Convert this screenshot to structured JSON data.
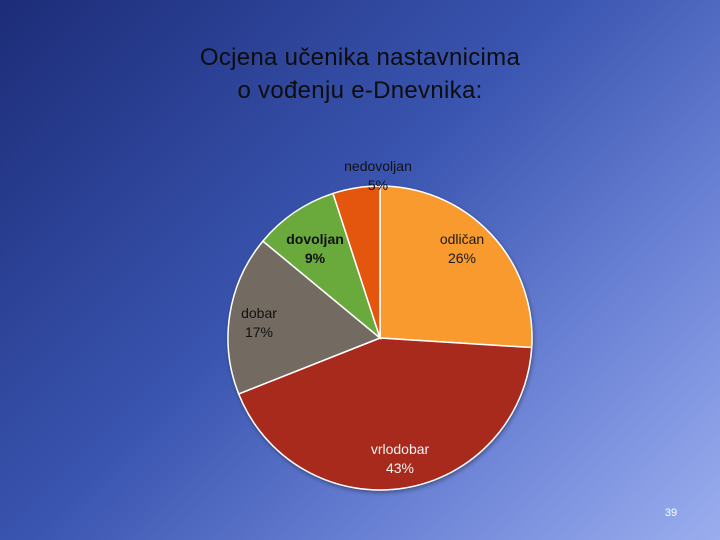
{
  "slide": {
    "title_lines": [
      "Ocjena učenika nastavnicima",
      "o vođenju e-Dnevnika:"
    ],
    "page_number": "39"
  },
  "chart_data": {
    "type": "pie",
    "title": "Ocjena učenika nastavnicima o vođenju e-Dnevnika:",
    "slices": [
      {
        "label": "odličan",
        "percent_label": "26%",
        "value": 26,
        "color": "#f89a2e"
      },
      {
        "label": "vrlodobar",
        "percent_label": "43%",
        "value": 43,
        "color": "#a8291b"
      },
      {
        "label": "dobar",
        "percent_label": "17%",
        "value": 17,
        "color": "#736b62"
      },
      {
        "label": "dovoljan",
        "percent_label": "9%",
        "value": 9,
        "color": "#6aaa3c"
      },
      {
        "label": "nedovoljan",
        "percent_label": "5%",
        "value": 5,
        "color": "#e4540f"
      }
    ],
    "legend": "none",
    "start_angle_deg": 0,
    "direction": "clockwise"
  }
}
